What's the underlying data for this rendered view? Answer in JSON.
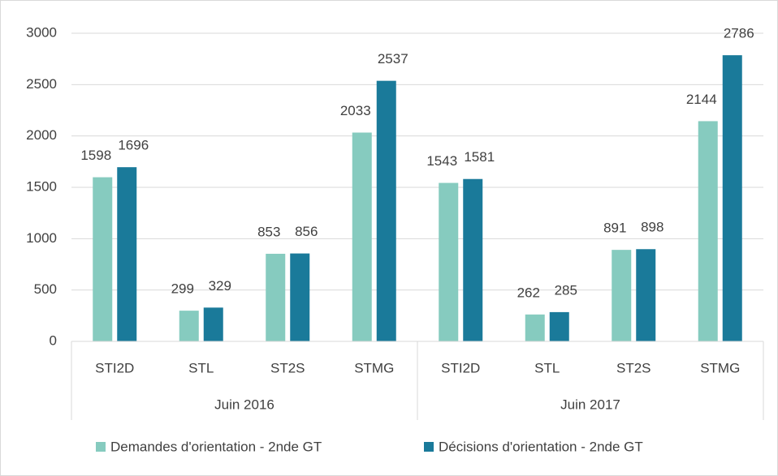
{
  "chart_data": {
    "type": "bar",
    "categories": [
      "STI2D",
      "STL",
      "ST2S",
      "STMG",
      "STI2D",
      "STL",
      "ST2S",
      "STMG"
    ],
    "groups": [
      "Juin 2016",
      "Juin 2017"
    ],
    "series": [
      {
        "name": "Demandes d'orientation - 2nde GT",
        "color": "#86cbbf",
        "values": [
          1598,
          299,
          853,
          2033,
          1543,
          262,
          891,
          2144
        ]
      },
      {
        "name": "Décisions d'orientation - 2nde GT",
        "color": "#1a7a9a",
        "values": [
          1696,
          329,
          856,
          2537,
          1581,
          285,
          898,
          2786
        ]
      }
    ],
    "ylim": [
      0,
      3000
    ],
    "yticks": [
      0,
      500,
      1000,
      1500,
      2000,
      2500,
      3000
    ],
    "grid": true,
    "legend": "bottom"
  }
}
